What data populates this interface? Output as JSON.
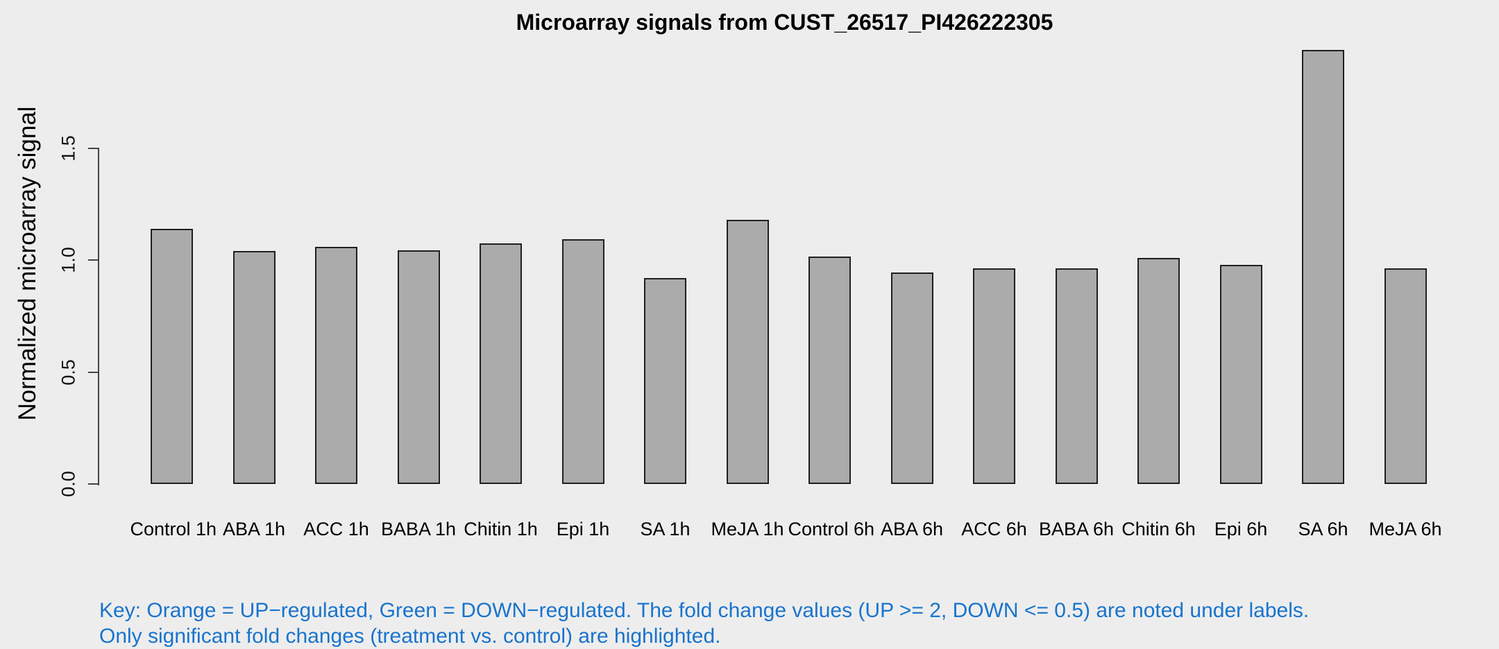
{
  "figure": {
    "background": "#EDEDED"
  },
  "chart_data": {
    "type": "bar",
    "title": "Microarray signals from CUST_26517_PI426222305",
    "ylabel": "Normalized microarray signal",
    "xlabel": "",
    "categories": [
      "Control 1h",
      "ABA 1h",
      "ACC 1h",
      "BABA 1h",
      "Chitin 1h",
      "Epi 1h",
      "SA 1h",
      "MeJA 1h",
      "Control 6h",
      "ABA 6h",
      "ACC 6h",
      "BABA 6h",
      "Chitin 6h",
      "Epi 6h",
      "SA 6h",
      "MeJA 6h"
    ],
    "values": [
      1.14,
      1.04,
      1.06,
      1.045,
      1.075,
      1.095,
      0.92,
      1.18,
      1.015,
      0.945,
      0.965,
      0.965,
      1.01,
      0.98,
      1.94,
      0.965
    ],
    "ytick_labels": [
      "0.0",
      "0.5",
      "1.0",
      "1.5"
    ],
    "ytick_values": [
      0,
      0.5,
      1.0,
      1.5
    ],
    "ylim": [
      0,
      1.98
    ],
    "grid": false,
    "legend": "none",
    "bar_fill": "#ABABAB",
    "bar_border": "#1F1F1F"
  },
  "footnote": {
    "color": "#1874CD",
    "line1": "Key: Orange = UP−regulated, Green = DOWN−regulated. The fold change values (UP >= 2, DOWN <= 0.5) are noted under labels.",
    "line2": "Only significant fold changes (treatment vs. control) are highlighted."
  }
}
